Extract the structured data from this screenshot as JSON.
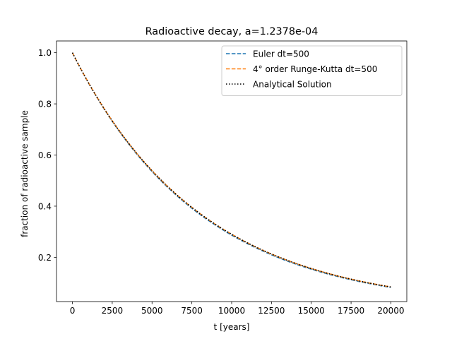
{
  "chart_data": {
    "type": "line",
    "title": "Radioactive decay, a=1.2378e-04",
    "xlabel": "t [years]",
    "ylabel": "fraction of radioactive sample",
    "xlim": [
      -1000,
      21000
    ],
    "ylim": [
      0.027,
      1.046
    ],
    "xticks": [
      0,
      2500,
      5000,
      7500,
      10000,
      12500,
      15000,
      17500,
      20000
    ],
    "yticks": [
      0.2,
      0.4,
      0.6,
      0.8,
      1.0
    ],
    "xtick_labels": [
      "0",
      "2500",
      "5000",
      "7500",
      "10000",
      "12500",
      "15000",
      "17500",
      "20000"
    ],
    "ytick_labels": [
      "0.2",
      "0.4",
      "0.6",
      "0.8",
      "1.0"
    ],
    "grid": false,
    "legend_position": "top-right",
    "x": [
      0,
      2500,
      5000,
      7500,
      10000,
      12500,
      15000,
      17500,
      20000
    ],
    "series": [
      {
        "name": "Euler dt=500",
        "color": "#1f77b4",
        "style": "dashed",
        "values": [
          1.0,
          0.7318,
          0.5355,
          0.3919,
          0.2868,
          0.2099,
          0.1536,
          0.1124,
          0.0822
        ]
      },
      {
        "name": "4° order Runge-Kutta dt=500",
        "color": "#ff7f0e",
        "style": "dashed",
        "values": [
          1.0,
          0.7338,
          0.5385,
          0.3952,
          0.29,
          0.2128,
          0.1562,
          0.1146,
          0.0841
        ]
      },
      {
        "name": "Analytical Solution",
        "color": "#000000",
        "style": "dotted",
        "values": [
          1.0,
          0.7338,
          0.5385,
          0.3952,
          0.29,
          0.2128,
          0.1562,
          0.1146,
          0.0841
        ]
      }
    ]
  }
}
